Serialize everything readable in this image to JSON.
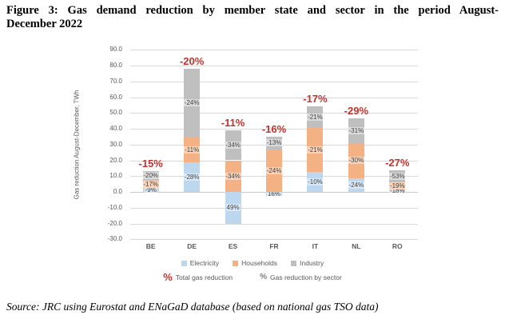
{
  "title": {
    "line1": "Figure 3: Gas demand reduction by member state and sector in the period August-",
    "line2": "December 2022"
  },
  "source": "Source: JRC using Eurostat and ENaGaD database (based on national gas TSO data)",
  "legend": {
    "total_symbol": "%",
    "total_label": "Total gas reduction",
    "sector_symbol": "%",
    "sector_label": "Gas reduction by sector"
  },
  "chart_data": {
    "type": "bar",
    "stacked": true,
    "title": "",
    "xlabel": "",
    "ylabel": "Gas reduction August-December, TWh",
    "ylim": [
      -30,
      90
    ],
    "ytick_step": 10,
    "grid": true,
    "grid_color": "#d9d9d9",
    "axis_text_color": "#595959",
    "legend_position": "bottom",
    "categories": [
      "BE",
      "DE",
      "ES",
      "FR",
      "IT",
      "NL",
      "RO"
    ],
    "series": [
      {
        "name": "Electricity",
        "color": "#bdd7ee",
        "values": [
          2.5,
          18.5,
          -20,
          -2.5,
          12.5,
          8.5,
          1.3
        ],
        "labels": [
          "-9%",
          "-28%",
          "49%",
          "16%",
          "-10%",
          "-24%",
          "-18%"
        ]
      },
      {
        "name": "Households",
        "color": "#f4b183",
        "values": [
          5.1,
          16.5,
          20,
          27,
          28,
          22.5,
          5.2
        ],
        "labels": [
          "-17%",
          "-11%",
          "-34%",
          "-24%",
          "-21%",
          "-30%",
          "-19%"
        ]
      },
      {
        "name": "Industry",
        "color": "#bfbfbf",
        "values": [
          5.5,
          43,
          19,
          8,
          13.5,
          15.5,
          7
        ],
        "labels": [
          "-20%",
          "-24%",
          "-34%",
          "-13%",
          "-21%",
          "-31%",
          "-53%"
        ]
      }
    ],
    "total_labels": [
      "-15%",
      "-20%",
      "-11%",
      "-16%",
      "-17%",
      "-29%",
      "-27%"
    ],
    "total_label_color": "#c3322d"
  }
}
